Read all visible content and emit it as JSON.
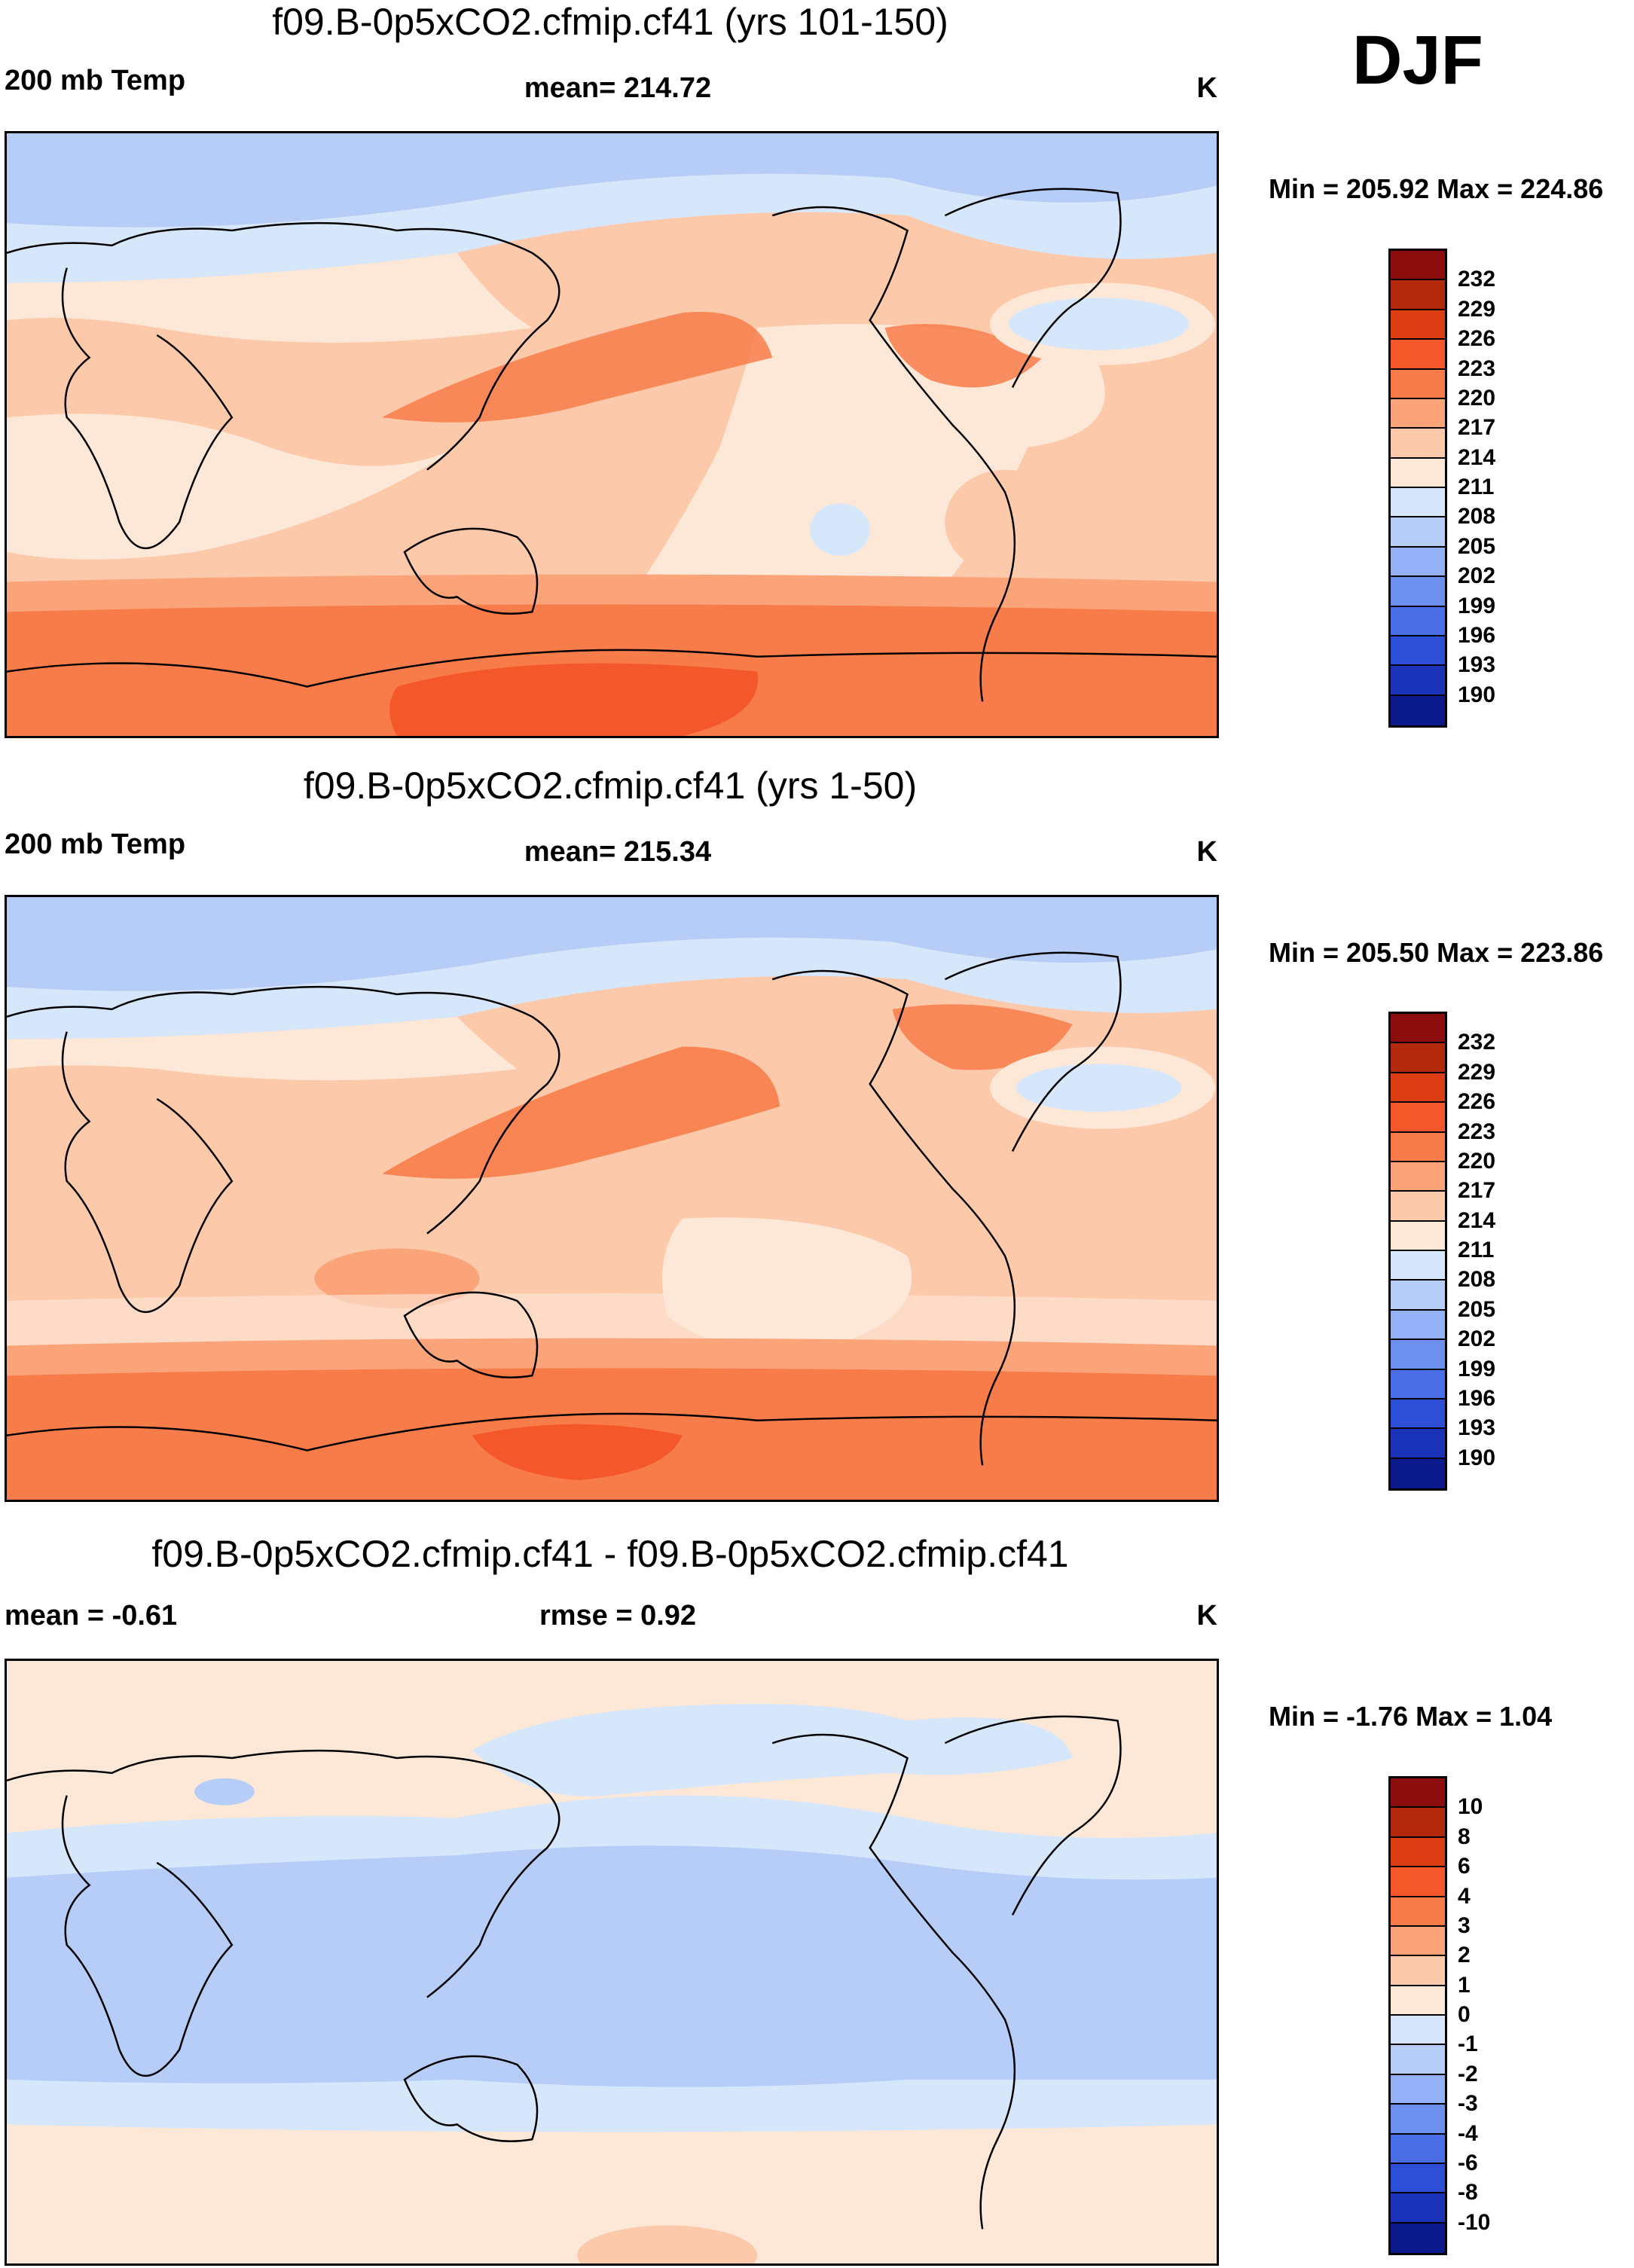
{
  "season": "DJF",
  "panels": [
    {
      "title": "f09.B-0p5xCO2.cfmip.cf41 (yrs 101-150)",
      "left_label": "200 mb Temp",
      "center_label": "mean= 214.72",
      "units": "K",
      "minmax": "Min = 205.92 Max = 224.86",
      "colorbar_labels": [
        "232",
        "229",
        "226",
        "223",
        "220",
        "217",
        "214",
        "211",
        "208",
        "205",
        "202",
        "199",
        "196",
        "193",
        "190"
      ]
    },
    {
      "title": "f09.B-0p5xCO2.cfmip.cf41 (yrs 1-50)",
      "left_label": "200 mb Temp",
      "center_label": "mean= 215.34",
      "units": "K",
      "minmax": "Min = 205.50 Max = 223.86",
      "colorbar_labels": [
        "232",
        "229",
        "226",
        "223",
        "220",
        "217",
        "214",
        "211",
        "208",
        "205",
        "202",
        "199",
        "196",
        "193",
        "190"
      ]
    },
    {
      "title": "f09.B-0p5xCO2.cfmip.cf41 - f09.B-0p5xCO2.cfmip.cf41",
      "left_label": "mean =  -0.61",
      "center_label": "rmse =   0.92",
      "units": "K",
      "minmax": "Min =  -1.76 Max =   1.04",
      "colorbar_labels": [
        "10",
        "8",
        "6",
        "4",
        "3",
        "2",
        "1",
        "0",
        "-1",
        "-2",
        "-3",
        "-4",
        "-6",
        "-8",
        "-10"
      ]
    }
  ],
  "colors": {
    "abs_scale": [
      "#8b0d0d",
      "#b22a0b",
      "#dc3d12",
      "#f4572a",
      "#f87c4a",
      "#fba47a",
      "#fdc9ab",
      "#fde8d8",
      "#d6e7fb",
      "#b6cdf8",
      "#93b1f4",
      "#6d90ee",
      "#4a6ee6",
      "#2d4fd8",
      "#1a33b8",
      "#0b1a8a"
    ],
    "diff_scale": [
      "#8b0d0d",
      "#b22a0b",
      "#dc3d12",
      "#f4572a",
      "#f87c4a",
      "#fba47a",
      "#fdc9ab",
      "#fde8d8",
      "#d6e7fb",
      "#b6cdf8",
      "#93b1f4",
      "#6d90ee",
      "#4a6ee6",
      "#2d4fd8",
      "#1a33b8",
      "#0b1a8a"
    ]
  }
}
